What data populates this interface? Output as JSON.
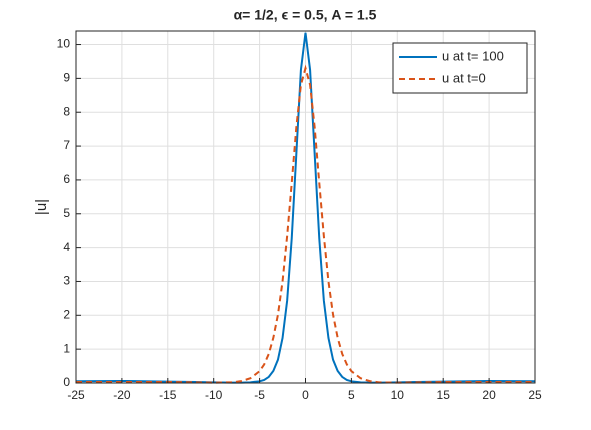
{
  "chart_data": {
    "type": "line",
    "title": "α= 1/2, ϵ = 0.5, A = 1.5",
    "y_label": "|u|",
    "x": [
      -25,
      -20,
      -15,
      -12,
      -10,
      -8,
      -7,
      -6,
      -5,
      -4.5,
      -4,
      -3.5,
      -3,
      -2.5,
      -2,
      -1.5,
      -1,
      -0.5,
      0,
      0.5,
      1,
      1.5,
      2,
      2.5,
      3,
      3.5,
      4,
      4.5,
      5,
      6,
      7,
      8,
      10,
      12,
      15,
      20,
      25
    ],
    "series": [
      {
        "name": "u at t= 100",
        "color": "#0072bd",
        "dash": "solid",
        "values": [
          0.05,
          0.06,
          0.04,
          0.03,
          0.02,
          0.01,
          0.01,
          0.02,
          0.05,
          0.09,
          0.18,
          0.36,
          0.69,
          1.33,
          2.43,
          4.27,
          6.76,
          9.25,
          10.35,
          9.25,
          6.76,
          4.27,
          2.43,
          1.33,
          0.69,
          0.36,
          0.18,
          0.09,
          0.05,
          0.02,
          0.01,
          0.01,
          0.02,
          0.03,
          0.04,
          0.06,
          0.05
        ]
      },
      {
        "name": "u at t=0",
        "color": "#d95319",
        "dash": "dashed",
        "values": [
          0.03,
          0.03,
          0.03,
          0.02,
          0.01,
          0.02,
          0.055,
          0.14,
          0.35,
          0.55,
          0.86,
          1.34,
          2.02,
          3.0,
          4.34,
          5.91,
          7.55,
          8.81,
          9.3,
          8.81,
          7.55,
          5.91,
          4.34,
          3.0,
          2.02,
          1.34,
          0.86,
          0.55,
          0.35,
          0.14,
          0.055,
          0.02,
          0.01,
          0.02,
          0.03,
          0.03,
          0.03
        ]
      }
    ],
    "xlim": [
      -25,
      25
    ],
    "xticks": [
      -25,
      -20,
      -15,
      -10,
      -5,
      0,
      5,
      10,
      15,
      20,
      25
    ],
    "ylim": [
      0,
      10.4
    ],
    "yticks": [
      0,
      1,
      2,
      3,
      4,
      5,
      6,
      7,
      8,
      9,
      10
    ],
    "grid": true,
    "legend": "top-right"
  }
}
